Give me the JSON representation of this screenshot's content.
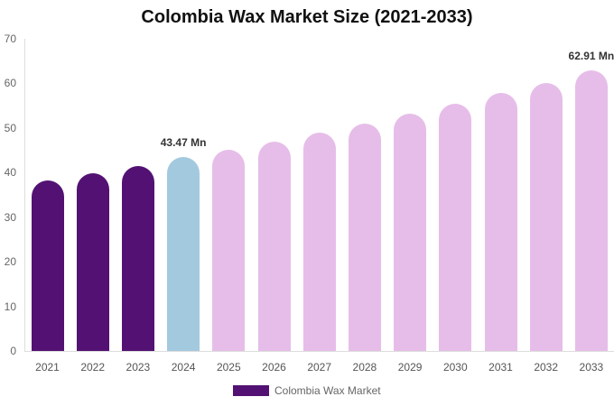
{
  "chart_data": {
    "type": "bar",
    "title": "Colombia Wax Market Size (2021-2033)",
    "xlabel": "",
    "ylabel": "",
    "ylim": [
      0,
      70
    ],
    "yticks": [
      0,
      10,
      20,
      30,
      40,
      50,
      60,
      70
    ],
    "grid": false,
    "legend_position": "bottom",
    "categories": [
      "2021",
      "2022",
      "2023",
      "2024",
      "2025",
      "2026",
      "2027",
      "2028",
      "2029",
      "2030",
      "2031",
      "2032",
      "2033"
    ],
    "series": [
      {
        "name": "Colombia Wax Market",
        "values": [
          38.3,
          39.9,
          41.5,
          43.47,
          45.1,
          47.0,
          49.0,
          51.0,
          53.2,
          55.5,
          57.9,
          60.1,
          62.91
        ]
      }
    ],
    "bar_colors": [
      "#531273",
      "#531273",
      "#531273",
      "#a3c9df",
      "#e6bde8",
      "#e6bde8",
      "#e6bde8",
      "#e6bde8",
      "#e6bde8",
      "#e6bde8",
      "#e6bde8",
      "#e6bde8",
      "#e6bde8"
    ],
    "annotations": [
      {
        "category": "2024",
        "text": "43.47 Mn"
      },
      {
        "category": "2033",
        "text": "62.91 Mn"
      }
    ]
  },
  "legend": {
    "label": "Colombia Wax Market",
    "color": "#531273"
  }
}
